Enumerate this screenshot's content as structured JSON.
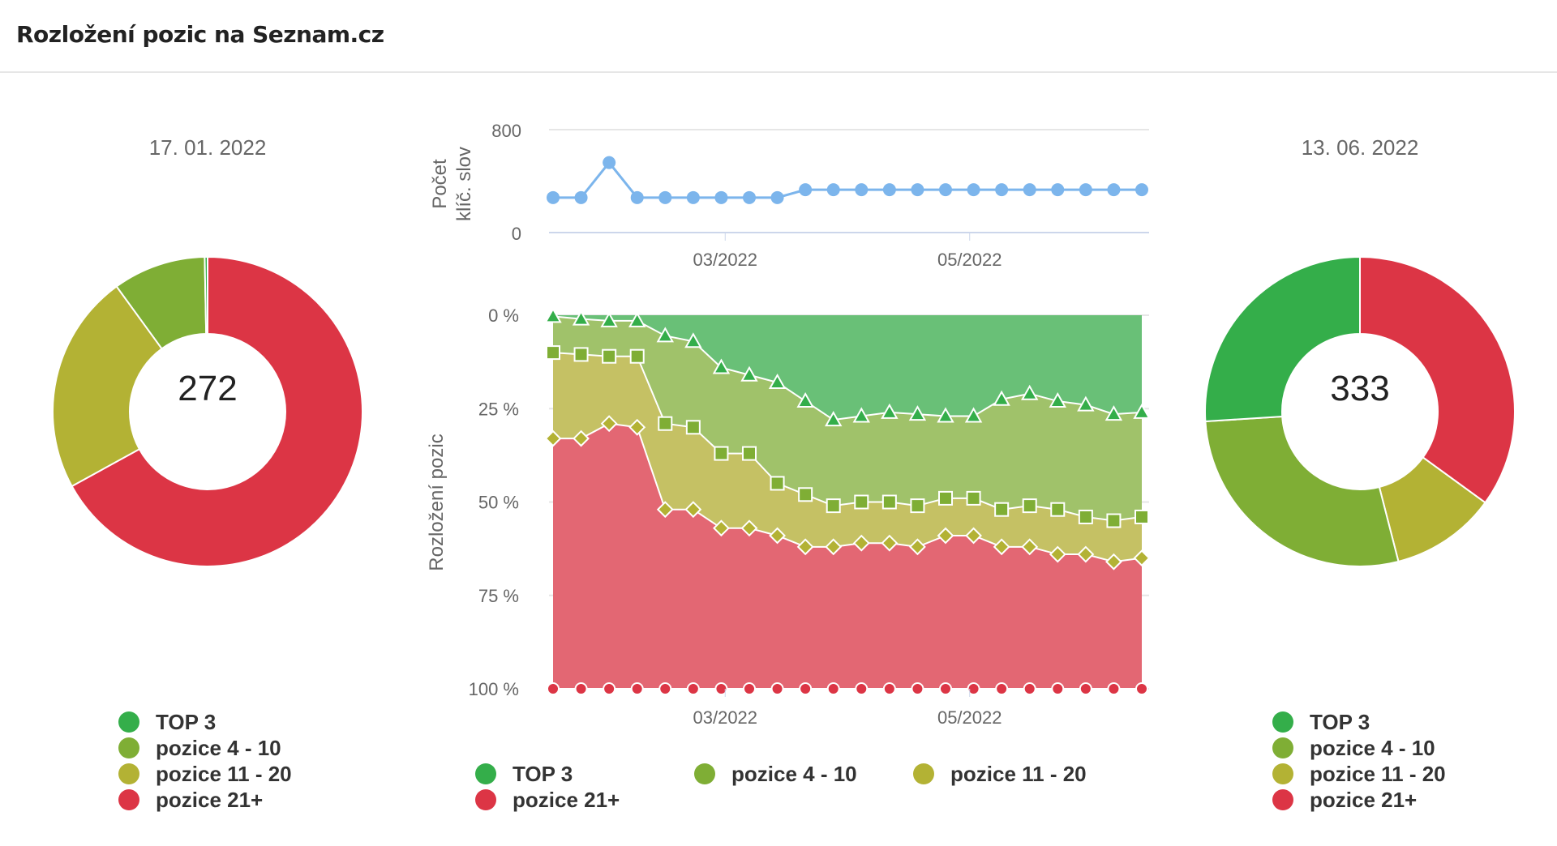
{
  "header": {
    "title": "Rozložení pozic na Seznam.cz"
  },
  "colors": {
    "top3": "#34ae4a",
    "p4_10": "#7fae35",
    "p11_20": "#b3b234",
    "p21": "#dc3545",
    "count_line": "#7cb5ec",
    "fill_top3": "#69c077",
    "fill_p4_10": "#a0c26a",
    "fill_p11_20": "#c5c164",
    "fill_p21": "#e36773"
  },
  "legend": [
    "TOP 3",
    "pozice 4 - 10",
    "pozice 11 - 20",
    "pozice 21+"
  ],
  "chart_data": [
    {
      "type": "pie",
      "variant": "donut",
      "title": "17. 01. 2022",
      "center_label": "272",
      "categories": [
        "pozice 21+",
        "pozice 11 - 20",
        "pozice 4 - 10",
        "TOP 3"
      ],
      "values_percent": [
        67,
        23,
        9.7,
        0.3
      ]
    },
    {
      "type": "line",
      "ylabel": "Počet klíč. slov",
      "ylim": [
        0,
        800
      ],
      "yticks": [
        "0",
        "800"
      ],
      "xticks": [
        "03/2022",
        "05/2022"
      ],
      "x_start": "2022-01-17",
      "x_end": "2022-06-13",
      "x_step": "weekly",
      "grid": true,
      "values": [
        272,
        272,
        544,
        272,
        272,
        272,
        272,
        272,
        272,
        333,
        333,
        333,
        333,
        333,
        333,
        333,
        333,
        333,
        333,
        333,
        333,
        333
      ]
    },
    {
      "type": "area",
      "stacked": "percent",
      "ylabel": "Rozložení pozic",
      "yticks": [
        "0 %",
        "25 %",
        "50 %",
        "75 %",
        "100 %"
      ],
      "xticks": [
        "03/2022",
        "05/2022"
      ],
      "x_start": "2022-01-17",
      "x_end": "2022-06-13",
      "x_step": "weekly",
      "y_reversed": true,
      "series": [
        {
          "name": "TOP 3",
          "cumulative_percent": [
            0.3,
            1,
            1.5,
            1.5,
            5.5,
            7,
            14,
            16,
            18,
            23,
            28,
            27,
            26,
            26.5,
            27,
            27,
            22.5,
            21,
            23,
            24,
            26.5,
            26
          ]
        },
        {
          "name": "pozice 4 - 10",
          "cumulative_percent": [
            10,
            10.5,
            11,
            11,
            29,
            30,
            37,
            37,
            45,
            48,
            51,
            50,
            50,
            51,
            49,
            49,
            52,
            51,
            52,
            54,
            55,
            54
          ]
        },
        {
          "name": "pozice 11 - 20",
          "cumulative_percent": [
            33,
            33,
            29,
            30,
            52,
            52,
            57,
            57,
            59,
            62,
            62,
            61,
            61,
            62,
            59,
            59,
            62,
            62,
            64,
            64,
            66,
            65
          ]
        },
        {
          "name": "pozice 21+",
          "cumulative_percent": [
            100,
            100,
            100,
            100,
            100,
            100,
            100,
            100,
            100,
            100,
            100,
            100,
            100,
            100,
            100,
            100,
            100,
            100,
            100,
            100,
            100,
            100
          ]
        }
      ]
    },
    {
      "type": "pie",
      "variant": "donut",
      "title": "13. 06. 2022",
      "center_label": "333",
      "categories": [
        "pozice 21+",
        "pozice 11 - 20",
        "pozice 4 - 10",
        "TOP 3"
      ],
      "values_percent": [
        35,
        11,
        28,
        26
      ]
    }
  ]
}
